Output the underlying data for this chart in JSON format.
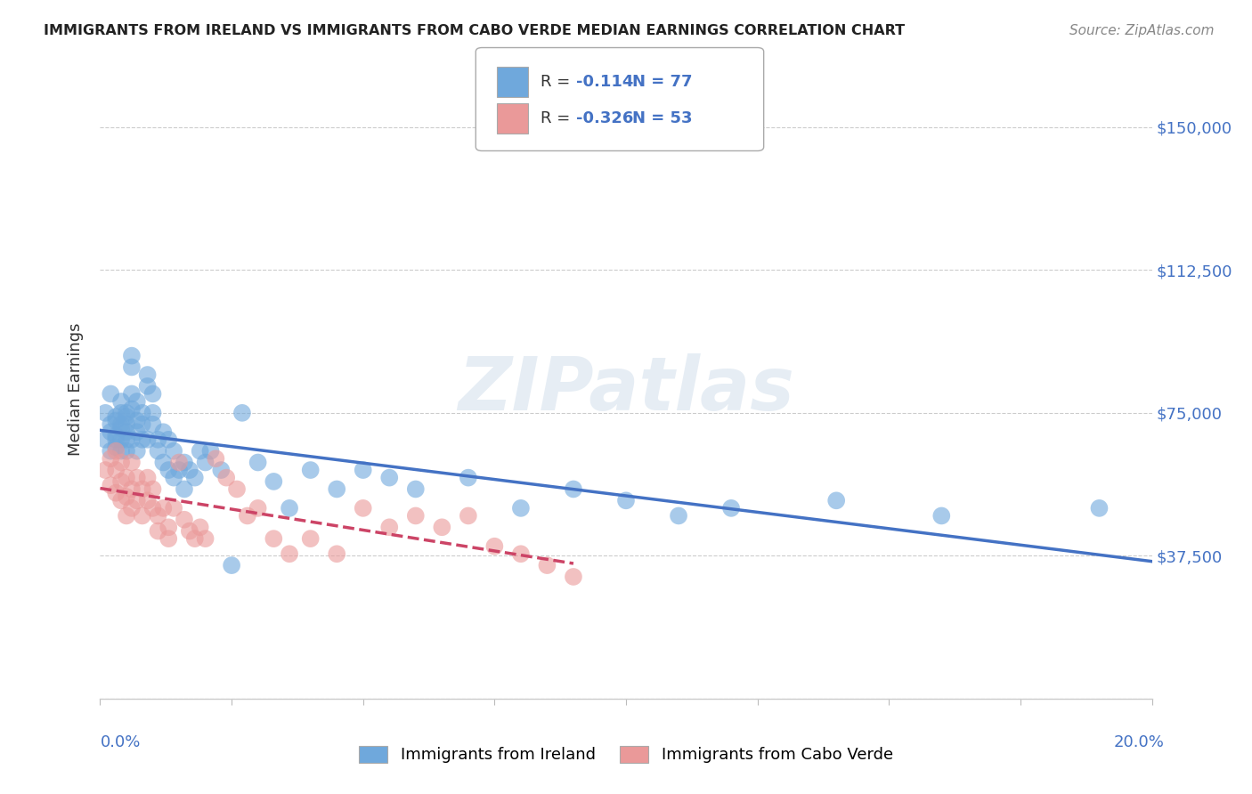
{
  "title": "IMMIGRANTS FROM IRELAND VS IMMIGRANTS FROM CABO VERDE MEDIAN EARNINGS CORRELATION CHART",
  "source": "Source: ZipAtlas.com",
  "ylabel": "Median Earnings",
  "yticks": [
    0,
    37500,
    75000,
    112500,
    150000
  ],
  "ytick_labels": [
    "",
    "$37,500",
    "$75,000",
    "$112,500",
    "$150,000"
  ],
  "xlim": [
    0.0,
    0.2
  ],
  "ylim": [
    15000,
    162500
  ],
  "ireland_R": -0.114,
  "ireland_N": 77,
  "caboverde_R": -0.326,
  "caboverde_N": 53,
  "ireland_color": "#6fa8dc",
  "caboverde_color": "#ea9999",
  "ireland_line_color": "#4472c4",
  "caboverde_line_color": "#cc4466",
  "text_color": "#4472c4",
  "ireland_x": [
    0.001,
    0.001,
    0.002,
    0.002,
    0.002,
    0.002,
    0.003,
    0.003,
    0.003,
    0.003,
    0.003,
    0.004,
    0.004,
    0.004,
    0.004,
    0.004,
    0.004,
    0.005,
    0.005,
    0.005,
    0.005,
    0.005,
    0.005,
    0.006,
    0.006,
    0.006,
    0.006,
    0.006,
    0.007,
    0.007,
    0.007,
    0.007,
    0.008,
    0.008,
    0.008,
    0.009,
    0.009,
    0.009,
    0.01,
    0.01,
    0.01,
    0.011,
    0.011,
    0.012,
    0.012,
    0.013,
    0.013,
    0.014,
    0.014,
    0.015,
    0.016,
    0.016,
    0.017,
    0.018,
    0.019,
    0.02,
    0.021,
    0.023,
    0.025,
    0.027,
    0.03,
    0.033,
    0.036,
    0.04,
    0.045,
    0.05,
    0.055,
    0.06,
    0.07,
    0.08,
    0.09,
    0.1,
    0.11,
    0.12,
    0.14,
    0.16,
    0.19
  ],
  "ireland_y": [
    75000,
    68000,
    72000,
    65000,
    80000,
    70000,
    69000,
    74000,
    68000,
    73000,
    66000,
    72000,
    75000,
    68000,
    71000,
    65000,
    78000,
    74000,
    70000,
    72000,
    68000,
    65000,
    75000,
    90000,
    87000,
    80000,
    76000,
    68000,
    78000,
    73000,
    70000,
    65000,
    75000,
    72000,
    68000,
    85000,
    82000,
    68000,
    80000,
    75000,
    72000,
    68000,
    65000,
    70000,
    62000,
    68000,
    60000,
    65000,
    58000,
    60000,
    62000,
    55000,
    60000,
    58000,
    65000,
    62000,
    65000,
    60000,
    35000,
    75000,
    62000,
    57000,
    50000,
    60000,
    55000,
    60000,
    58000,
    55000,
    58000,
    50000,
    55000,
    52000,
    48000,
    50000,
    52000,
    48000,
    50000
  ],
  "caboverde_x": [
    0.001,
    0.002,
    0.002,
    0.003,
    0.003,
    0.003,
    0.004,
    0.004,
    0.004,
    0.005,
    0.005,
    0.005,
    0.006,
    0.006,
    0.006,
    0.007,
    0.007,
    0.008,
    0.008,
    0.009,
    0.009,
    0.01,
    0.01,
    0.011,
    0.011,
    0.012,
    0.013,
    0.013,
    0.014,
    0.015,
    0.016,
    0.017,
    0.018,
    0.019,
    0.02,
    0.022,
    0.024,
    0.026,
    0.028,
    0.03,
    0.033,
    0.036,
    0.04,
    0.045,
    0.05,
    0.055,
    0.06,
    0.065,
    0.07,
    0.075,
    0.08,
    0.085,
    0.09
  ],
  "caboverde_y": [
    60000,
    63000,
    56000,
    65000,
    60000,
    54000,
    62000,
    57000,
    52000,
    58000,
    53000,
    48000,
    62000,
    55000,
    50000,
    58000,
    52000,
    55000,
    48000,
    58000,
    52000,
    55000,
    50000,
    48000,
    44000,
    50000,
    45000,
    42000,
    50000,
    62000,
    47000,
    44000,
    42000,
    45000,
    42000,
    63000,
    58000,
    55000,
    48000,
    50000,
    42000,
    38000,
    42000,
    38000,
    50000,
    45000,
    48000,
    45000,
    48000,
    40000,
    38000,
    35000,
    32000
  ]
}
